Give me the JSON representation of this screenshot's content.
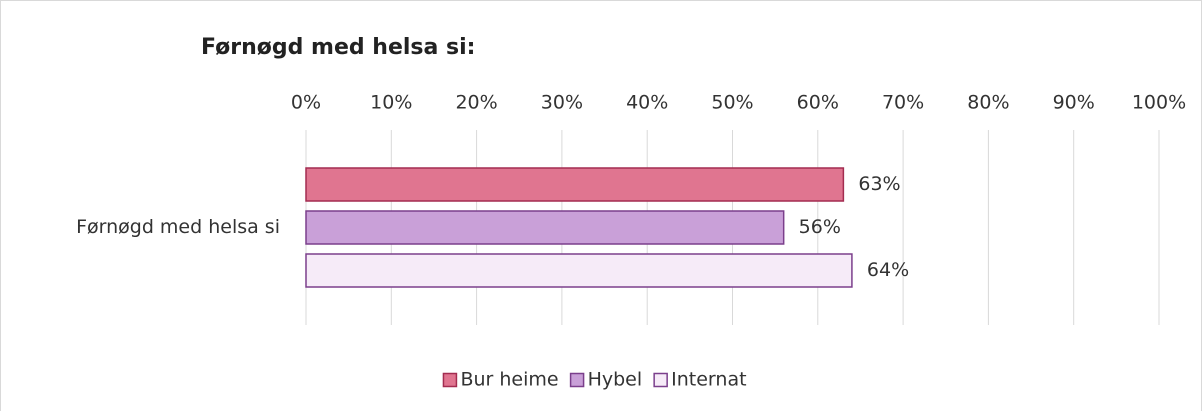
{
  "chart_data": {
    "type": "hbar",
    "title": "Førnøgd med helsa si:",
    "categories": [
      "Førnøgd med helsa si"
    ],
    "series": [
      {
        "name": "Bur heime",
        "color": "#e07590",
        "stroke": "#a32c50",
        "values": [
          63
        ],
        "value_labels": [
          "63%"
        ]
      },
      {
        "name": "Hybel",
        "color": "#c9a0d8",
        "stroke": "#7b3f8c",
        "values": [
          56
        ],
        "value_labels": [
          "56%"
        ]
      },
      {
        "name": "Internat",
        "color": "#f6ebf8",
        "stroke": "#7b3f8c",
        "values": [
          64
        ],
        "value_labels": [
          "64%"
        ]
      }
    ],
    "xlim": [
      0,
      100
    ],
    "xticks": [
      {
        "value": 0,
        "label": "0%"
      },
      {
        "value": 10,
        "label": "10%"
      },
      {
        "value": 20,
        "label": "20%"
      },
      {
        "value": 30,
        "label": "30%"
      },
      {
        "value": 40,
        "label": "40%"
      },
      {
        "value": 50,
        "label": "50%"
      },
      {
        "value": 60,
        "label": "60%"
      },
      {
        "value": 70,
        "label": "70%"
      },
      {
        "value": 80,
        "label": "80%"
      },
      {
        "value": 90,
        "label": "90%"
      },
      {
        "value": 100,
        "label": "100%"
      }
    ],
    "grid": true,
    "legend": "bottom"
  }
}
